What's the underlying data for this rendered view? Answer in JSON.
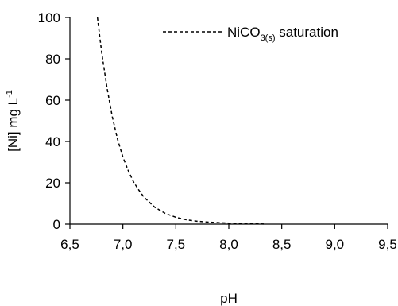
{
  "chart_data": {
    "type": "line",
    "title": "",
    "xlabel": "pH",
    "ylabel": {
      "main": "[Ni] mg L",
      "superscript": "-1"
    },
    "xlim": [
      6.5,
      9.5
    ],
    "ylim": [
      0,
      100
    ],
    "x_ticks": [
      "6,5",
      "7,0",
      "7,5",
      "8,0",
      "8,5",
      "9,0",
      "9,5"
    ],
    "y_ticks": [
      "0",
      "20",
      "40",
      "60",
      "80",
      "100"
    ],
    "grid": false,
    "legend_position": "top-right",
    "series": [
      {
        "name": {
          "prefix": "NiCO",
          "subscript": "3(s)",
          "suffix": " saturation"
        },
        "line_style": "dashed",
        "color": "#000000",
        "x": [
          6.76,
          6.8,
          6.85,
          6.9,
          6.95,
          7.0,
          7.05,
          7.1,
          7.15,
          7.2,
          7.3,
          7.4,
          7.5,
          7.6,
          7.7,
          7.8,
          7.9,
          8.0,
          8.1,
          8.2,
          8.33
        ],
        "y": [
          100,
          83,
          66,
          52,
          41,
          32.5,
          26,
          20.5,
          16.5,
          13,
          8.2,
          5.2,
          3.3,
          2.1,
          1.4,
          1.0,
          0.7,
          0.5,
          0.35,
          0.2,
          0.05
        ]
      }
    ]
  }
}
